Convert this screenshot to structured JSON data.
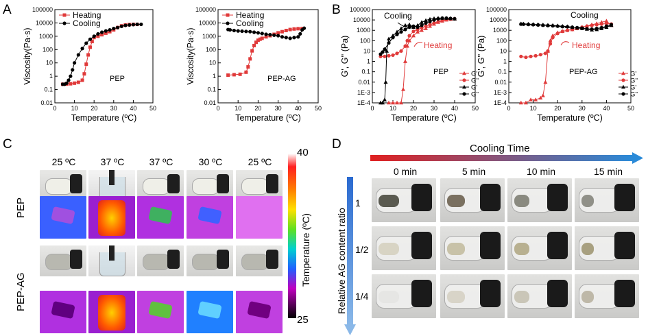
{
  "panels": {
    "a": "A",
    "b": "B",
    "c": "C",
    "d": "D"
  },
  "chart_data": [
    {
      "type": "line",
      "id": "A1",
      "xlabel": "Temperature (ºC)",
      "ylabel": "Viscosity(Pa·s)",
      "annotation": "PEP",
      "xlim": [
        0,
        50
      ],
      "ylim": [
        0.01,
        100000
      ],
      "log_y": true,
      "xticks": [
        "0",
        "10",
        "20",
        "30",
        "40",
        "50"
      ],
      "yticks": [
        "0.01",
        "0.1",
        "1",
        "10",
        "100",
        "1000",
        "10000",
        "100000"
      ],
      "legend": [
        "Heating",
        "Cooling"
      ],
      "series": [
        {
          "name": "Heating",
          "color": "#e03a3a",
          "marker": "square",
          "x": [
            4,
            6,
            8,
            10,
            12,
            14,
            15,
            16,
            17,
            18,
            19,
            20,
            22,
            24,
            26,
            28,
            30,
            32,
            34,
            36,
            38,
            40,
            42
          ],
          "y": [
            0.25,
            0.26,
            0.27,
            0.3,
            0.35,
            0.5,
            1.5,
            8,
            40,
            150,
            400,
            800,
            1000,
            1300,
            1700,
            2200,
            3000,
            4500,
            6000,
            7000,
            7500,
            7800,
            7800
          ]
        },
        {
          "name": "Cooling",
          "color": "#000000",
          "marker": "circle",
          "x": [
            44,
            42,
            40,
            38,
            36,
            34,
            32,
            30,
            28,
            26,
            24,
            22,
            20,
            18,
            16,
            14,
            12,
            10,
            9,
            8,
            7,
            6,
            5,
            4
          ],
          "y": [
            7800,
            7800,
            7500,
            7000,
            6500,
            5500,
            4500,
            3800,
            3000,
            2500,
            2000,
            1500,
            1000,
            600,
            300,
            120,
            40,
            10,
            3,
            1,
            0.5,
            0.3,
            0.25,
            0.25
          ]
        }
      ]
    },
    {
      "type": "line",
      "id": "A2",
      "xlabel": "Temperature (ºC)",
      "ylabel": "Viscosity(Pa·s)",
      "annotation": "PEP-AG",
      "xlim": [
        0,
        50
      ],
      "ylim": [
        0.01,
        100000
      ],
      "log_y": true,
      "xticks": [
        "0",
        "10",
        "20",
        "30",
        "40",
        "50"
      ],
      "yticks": [
        "0.01",
        "0.1",
        "1",
        "10",
        "100",
        "1000",
        "10000",
        "100000"
      ],
      "legend": [
        "Heating",
        "Cooling"
      ],
      "series": [
        {
          "name": "Heating",
          "color": "#e03a3a",
          "marker": "square",
          "x": [
            5,
            8,
            11,
            14,
            15,
            16,
            17,
            18,
            19,
            20,
            21,
            22,
            24,
            26,
            28,
            30,
            32,
            34,
            36,
            38,
            40,
            42
          ],
          "y": [
            1.2,
            1.3,
            1.4,
            2,
            5,
            20,
            80,
            200,
            350,
            500,
            600,
            700,
            900,
            1100,
            1400,
            1800,
            2200,
            2700,
            3200,
            3500,
            3700,
            3800
          ]
        },
        {
          "name": "Cooling",
          "color": "#000000",
          "marker": "circle",
          "x": [
            43,
            42,
            41,
            40,
            38,
            36,
            34,
            32,
            30,
            28,
            26,
            24,
            22,
            20,
            18,
            16,
            14,
            12,
            10,
            8,
            6,
            5
          ],
          "y": [
            4000,
            3000,
            1500,
            900,
            800,
            700,
            800,
            900,
            1100,
            1200,
            1300,
            1400,
            1600,
            1800,
            2000,
            2200,
            2300,
            2400,
            2500,
            2700,
            3000,
            3200
          ]
        }
      ]
    },
    {
      "type": "line",
      "id": "B1",
      "xlabel": "Temperature (ºC)",
      "ylabel": "G', G'' (Pa)",
      "annotation": "PEP",
      "label_cooling": "Cooling",
      "label_heating": "Heating",
      "xlim": [
        0,
        50
      ],
      "ylim": [
        0.0001,
        100000
      ],
      "log_y": true,
      "xticks": [
        "0",
        "10",
        "20",
        "30",
        "40",
        "50"
      ],
      "yticks": [
        "1E-4",
        "1E-3",
        "0.01",
        "0.1",
        "1",
        "10",
        "100",
        "1000",
        "10000",
        "100000"
      ],
      "legend": [
        "G'",
        "G''",
        "G'",
        "G''"
      ],
      "series": [
        {
          "name": "G' heating",
          "color": "#e03a3a",
          "marker": "triangle",
          "x": [
            8,
            10,
            12,
            14,
            15,
            16,
            17,
            18,
            20,
            22,
            24,
            26,
            28,
            30,
            32,
            34,
            36,
            38,
            40
          ],
          "y": [
            0.0001,
            0.0001,
            0.0001,
            0.0001,
            0.002,
            1,
            30,
            100,
            300,
            700,
            1000,
            1500,
            2500,
            4000,
            6000,
            8000,
            10000,
            12000,
            13000
          ]
        },
        {
          "name": "G'' heating",
          "color": "#e03a3a",
          "marker": "circle",
          "x": [
            4,
            6,
            8,
            10,
            12,
            14,
            16,
            17,
            18,
            20,
            22,
            24,
            26,
            28,
            30,
            32,
            34,
            36,
            38,
            40
          ],
          "y": [
            3,
            3,
            3.5,
            4,
            6,
            10,
            30,
            100,
            300,
            800,
            1200,
            1800,
            2500,
            3500,
            5000,
            7000,
            9000,
            11000,
            12000,
            13000
          ]
        },
        {
          "name": "G' cooling",
          "color": "#000000",
          "marker": "triangle",
          "x": [
            4,
            5,
            6,
            6.5,
            7,
            8,
            10,
            12,
            14,
            16,
            18,
            20,
            22,
            24,
            26,
            28,
            30,
            32,
            34,
            36,
            38,
            40
          ],
          "y": [
            0.0001,
            0.0001,
            0.0002,
            0.01,
            10,
            150,
            300,
            700,
            1500,
            3000,
            3500,
            2000,
            3000,
            6000,
            9000,
            12000,
            14000,
            15000,
            15000,
            15000,
            14000,
            13000
          ]
        },
        {
          "name": "G'' cooling",
          "color": "#000000",
          "marker": "circle",
          "x": [
            4,
            5,
            6,
            8,
            10,
            12,
            14,
            16,
            18,
            20,
            22,
            24,
            26,
            28,
            30,
            32,
            34,
            36,
            38,
            40
          ],
          "y": [
            5,
            8,
            15,
            60,
            200,
            400,
            700,
            1200,
            2000,
            2500,
            2000,
            3000,
            5000,
            7000,
            10000,
            13000,
            15000,
            15000,
            14000,
            13000
          ]
        }
      ]
    },
    {
      "type": "line",
      "id": "B2",
      "xlabel": "Temperature (ºC)",
      "ylabel": "G', G'' (Pa)",
      "annotation": "PEP-AG",
      "label_cooling": "Cooling",
      "label_heating": "Heating",
      "xlim": [
        0,
        50
      ],
      "ylim": [
        0.0001,
        100000
      ],
      "log_y": true,
      "xticks": [
        "0",
        "10",
        "20",
        "30",
        "40",
        "50"
      ],
      "yticks": [
        "1E-4",
        "1E-3",
        "0.01",
        "0.1",
        "1",
        "10",
        "100",
        "1000",
        "10000",
        "100000"
      ],
      "legend": [
        "G'",
        "G''",
        "G'",
        "G''"
      ],
      "series": [
        {
          "name": "G' heating",
          "color": "#e03a3a",
          "marker": "triangle",
          "x": [
            5,
            7,
            9,
            11,
            13,
            14,
            15,
            16,
            17,
            18,
            20,
            22,
            24,
            26,
            28,
            30,
            32,
            34,
            36,
            38,
            40,
            42
          ],
          "y": [
            0.0001,
            0.0001,
            0.0002,
            0.0002,
            0.0003,
            0.0005,
            0.01,
            10,
            100,
            300,
            600,
            800,
            1000,
            1200,
            1500,
            2000,
            2600,
            3500,
            4500,
            6000,
            8000,
            3000
          ]
        },
        {
          "name": "G'' heating",
          "color": "#e03a3a",
          "marker": "circle",
          "x": [
            5,
            7,
            9,
            11,
            13,
            15,
            16,
            17,
            18,
            20,
            22,
            24,
            26,
            28,
            30,
            32,
            34,
            36,
            38,
            40,
            42
          ],
          "y": [
            3,
            2.5,
            3,
            3.5,
            4.5,
            6,
            10,
            50,
            200,
            500,
            800,
            1000,
            1200,
            1500,
            2000,
            2500,
            3000,
            3500,
            4000,
            4500,
            4000
          ]
        },
        {
          "name": "G' cooling",
          "color": "#000000",
          "marker": "triangle",
          "x": [
            42,
            40,
            38,
            36,
            34,
            32,
            30,
            28,
            26,
            24,
            22,
            20,
            18,
            16,
            14,
            12,
            10,
            8,
            6,
            5
          ],
          "y": [
            3000,
            2000,
            1500,
            1200,
            1100,
            1300,
            1500,
            1700,
            2000,
            2300,
            2500,
            2800,
            3000,
            3200,
            3400,
            3600,
            3800,
            4000,
            4200,
            4300
          ]
        },
        {
          "name": "G'' cooling",
          "color": "#000000",
          "marker": "circle",
          "x": [
            42,
            40,
            38,
            36,
            34,
            32,
            30,
            28,
            26,
            24,
            22,
            20,
            18,
            16,
            14,
            12,
            10,
            8,
            6,
            5
          ],
          "y": [
            3500,
            2500,
            1800,
            1500,
            1300,
            1400,
            1600,
            1800,
            2000,
            2200,
            2300,
            2500,
            2700,
            2900,
            3100,
            3300,
            3500,
            3700,
            3900,
            4000
          ]
        }
      ]
    }
  ],
  "panel_c": {
    "temps": [
      "25 ºC",
      "37 ºC",
      "37 ºC",
      "30 ºC",
      "25 ºC"
    ],
    "row_labels": [
      "PEP",
      "PEP-AG"
    ],
    "colorbar": {
      "max": "40",
      "min": "25",
      "label": "Temperature (ºC)"
    }
  },
  "panel_d": {
    "title": "Cooling Time",
    "times": [
      "0 min",
      "5 min",
      "10 min",
      "15 min"
    ],
    "ratios": [
      "1",
      "1/2",
      "1/4"
    ],
    "axis_label": "Relative AG content ratio"
  }
}
